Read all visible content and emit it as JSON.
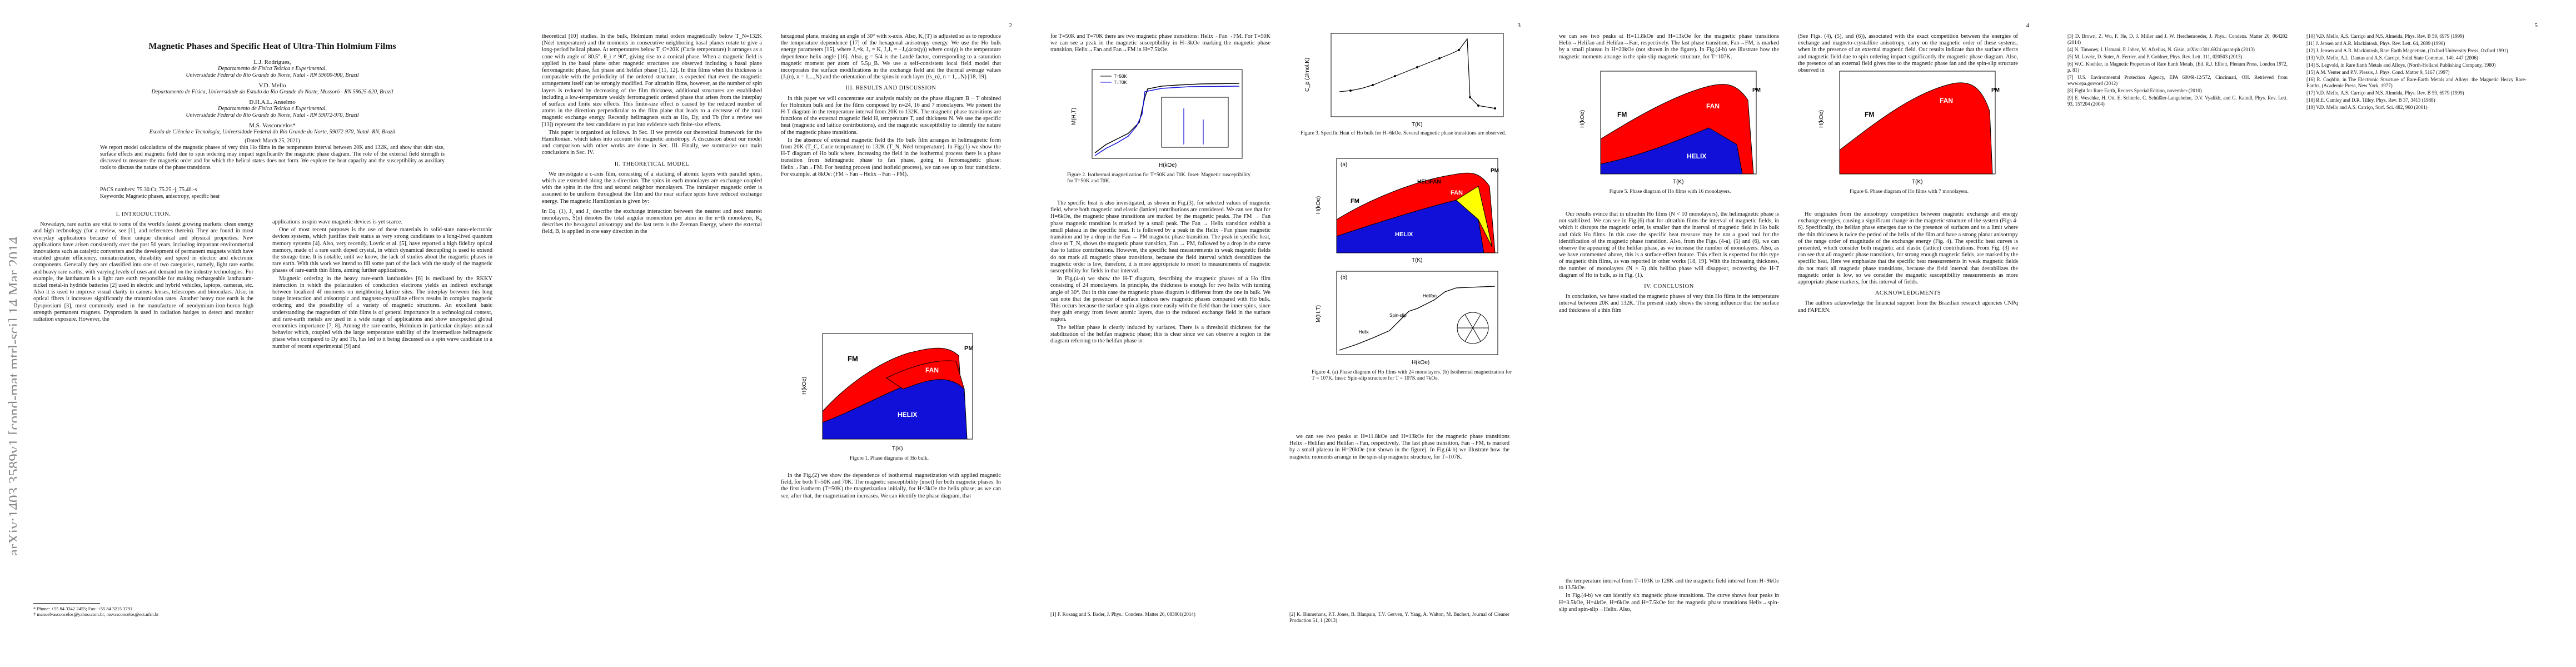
{
  "arxiv_stamp": "arXiv:1403.3589v1  [cond-mat.mtrl-sci]  14 Mar 2014",
  "page_numbers": [
    "2",
    "3",
    "4",
    "5"
  ],
  "paper": {
    "title": "Magnetic Phases and Specific Heat of Ultra-Thin Holmium Films",
    "authors": [
      {
        "name": "L.J. Rodrigues,",
        "affiliations": [
          "Departamento de Física Teórica e Experimental,",
          "Universidade Federal do Rio Grande do Norte, Natal - RN 59600-900, Brazil"
        ]
      },
      {
        "name": "V.D. Mello",
        "affiliations": [
          "Departamento de Física, Universidade do Estado do Rio Grande do Norte, Mossoró - RN 59625-620, Brazil"
        ]
      },
      {
        "name": "D.H.A.L. Anselmo",
        "affiliations": [
          "Departamento de Física Teórica e Experimental,",
          "Universidade Federal do Rio Grande do Norte, Natal - RN 59072-970, Brazil"
        ]
      },
      {
        "name": "M.S. Vasconcelos*",
        "affiliations": [
          "Escola de Ciência e Tecnologia, Universidade Federal do Rio Grande do Norte, 59072-970, Natal- RN, Brazil"
        ]
      }
    ],
    "date": "(Dated: March 25, 2021)",
    "abstract": "We report model calculations of the magnetic phases of very thin Ho films in the temperature interval between 20K and 132K, and show that skin size, surface effects and magnetic field due to spin ordering may impact significantly the magnetic phase diagram. The role of the external field strength is discussed to measure the magnetic order and for which the helical states does not form. We explore the heat capacity and the susceptibility as auxiliary tools to discuss the nature of the phase transitions.",
    "pacs": "PACS numbers: 75.30.Cr, 75.25.-j, 75.40.-s",
    "keywords": "Keywords: Magnetic phases, anisotropy, specific heat"
  },
  "sections": {
    "intro": "I.   INTRODUCTION.",
    "theory": "II.   THEORETICAL MODEL",
    "results": "III.   RESULTS AND DISCUSSION",
    "conclusion": "IV.   CONCLUSION",
    "ack": "ACKNOWLEDGMENTS"
  },
  "text": {
    "p1_col1": [
      "Nowadays, rare earths are vital to some of the world's fastest growing markets: clean energy and high technology (for a review, see [1], and references therein). They are found in most everyday applications because of their unique chemical and physical properties. New applications have arisen consistently over the past 50 years, including important environmental innovations such as catalytic converters and the development of permanent magnets which have enabled greater efficiency, miniaturization, durability and speed in electric and electronic components. Generally they are classified into one of two categories, namely, light rare earths and heavy rare earths, with varying levels of uses and demand on the industry technologies. For example, the lanthanum is a light rare earth responsible for making rechargeable lanthanum-nickel metal-in hydride batteries [2] used in electric and hybrid vehicles, laptops, cameras, etc. Also it is used to improve visual clarity in camera lenses, telescopes and binoculars. Also, in optical fibers it increases significantly the transmission rates. Another heavy rare earth is the Dysprosium [3], most commonly used in the manufacture of neodymium-iron-boron high strength permanent magnets. Dysprosium is used in radiation badges to detect and monitor radiation exposure. However, the"
    ],
    "p1_col2": [
      "applications in spin wave magnetic devices is yet scarce.",
      "One of most recent purposes is the use of these materials in solid-state nano-electronic devices systems, which justifies their status as very strong candidates to a long-lived quantum memory systems [4]. Also, very recently, Lovric et al. [5], have reported a high fidelity optical memory, made of a rare earth doped crystal, in which dynamical decoupling is used to extend the storage time. It is notable, until we know, the lack of studies about the magnetic phases in rare earth. With this work we intend to fill some part of the lack with the study of the magnetic phases of rare-earth thin films, aiming further applications.",
      "Magnetic ordering in the heavy rare-earth lanthanides [6] is mediated by the RKKY interaction in which the polarization of conduction electrons yields an indirect exchange between localized 4f moments on neighboring lattice sites. The interplay between this long range interaction and anisotropic and magneto-crystalline effects results in complex magnetic ordering and the possibility of a variety of magnetic structures. An excellent basic understanding the magnetism of thin films is of general importance in a technological context, and rare-earth metals are used in a wide range of applications and show unexpected global economics importance [7, 8]. Among the rare-earths, Holmium in particular displays unusual behavior which, coupled with the large temperature stability of the intermediate helimagnetic phase when compared to Dy and Tb, has led to it being discussed as a spin wave candidate in a number of recent experimental [9] and"
    ],
    "footnotes": [
      "* Phone: +55 84 3342 2455; Fax: +55 84 3215 3791",
      "† manuelvasconcelos@yahoo.com.br; msvasconcelos@ect.ufrn.br"
    ],
    "p2_col1": [
      "theoretical [10] studies. In the bulk, Holmium metal orders magnetically below T_N=132K (Néel temperature) and the moments in consecutive neighboring basal planes rotate to give a long-period helical phase. At temperatures below T_C=20K (Curie temperature) it arranges as a cone with angle of 80.5°, θ_i ≠ 90°, giving rise to a conical phase. When a magnetic field is applied in the basal plane other magnetic structures are observed including a basal plane ferromagnetic phase, fan phase and helifan phase [11, 12]. In thin films when the thickness is comparable with the periodicity of the ordered structure, is expected that even the magnetic arrangement itself can be strongly modified. For ultrathin films, however, as the number of spin layers is reduced by decreasing of the film thickness, additional structures are established including a low-temperature weakly ferromagnetic ordered phase that arises from the interplay of surface and finite size effects. This finite-size effect is caused by the reduced number of atoms in the direction perpendicular to the film plane that leads to a decrease of the total magnetic exchange energy. Recently helimagnets such as Ho, Dy, and Tb (for a review see [13]) represent the best candidates to put into evidence such finite-size effects.",
      "This paper is organized as follows. In Sec. II we provide our theoretical framework for the Hamiltonian, which takes into account the magnetic anisotropy. A discussion about our model and comparison with other works are done in Sec. III. Finally, we summarize our main conclusions in Sec. IV."
    ],
    "p2_col1_theory": [
      "We investigate a c-axis film, consisting of a stacking of atomic layers with parallel spins, which are extended along the z-direction. The spins in each monolayer are exchange coupled with the spins in the first and second neighbor monolayers. The intralayer magnetic order is assumed to be uniform throughout the film and the near surface spins have reduced exchange energy. The magnetic Hamiltonian is given by:"
    ],
    "equation": [
      "H = J₁(z − 1) Σ Ŝ(n)·Ŝ(n+1) +",
      "J₂(z − 1)² Σ Ŝ(n)·Ŝ(n+2) +",
      "Σ [K₆ cos(6φₙ) − gμ_B Ŝ(n)·B]",
      "(1)"
    ],
    "p2_col1_after": [
      "In Eq. (1), J₁ and J₂ describe the exchange interaction between the nearest and next nearest monolayers, Ŝ(n) denotes the total angular momentum per atom in the n−th monolayer, K₆ describes the hexagonal anisotropy and the last term is the Zeeman Energy, where the external field, B, is applied in one easy direction in the"
    ],
    "p2_col2": [
      "hexagonal plane, making an angle of 30° with x-axis. Also, K₆(T) is adjusted so as to reproduce the temperature dependence [17] of the hexagonal anisotropy energy. We use the Ho bulk energy parameters [15], where J₁=k, J₂ = K, J₁J₂ = −J₂(4cos(γ)) where cos(γ) is the temperature dependence helix angle [16]. Also, g = 5/4 is the Landé factor, corresponding to a saturation magnetic moment per atom of 5.5μ_B. We use a self-consistent local field model that incorporates the surface modifications in the exchange field and the thermal average values (J₁(n), n = 1,...,N) and the orientation of the spins in each layer (⟨s_n⟩, n = 1,...N) [18, 19].",
      "In this paper we will concentrate our analysis mainly on the phase diagram B − T obtained for Holmium bulk and for the films composed by n=24, 16 and 7 monolayers. We present the H-T diagram in the temperature interval from 20K to 132K. The magnetic phase transitions are functions of the external magnetic field H, temperature T, and thickness N. We use the specific heat (magnetic and lattice contributions), and the magnetic susceptibility to identify the nature of the magnetic phase transitions.",
      "In the absence of external magnetic field the Ho bulk film arranges in helimagnetic form from 20K (T_C, Curie temperature) to 132K (T_N, Néel temperature). In Fig.(1) we show the H-T diagram of Ho bulk where, increasing the field in the isothermal process there is a phase transition from helimagnetic phase to fan phase, going to ferromagnetic phase: Helix→Fan→FM. For heating process (and isofield process), we can see up to four transitions. For example, at 8kOe: (FM→Fan→Helix→Fan→PM)."
    ],
    "fig1_caption": "Figure 1. Phase diagrams of Ho bulk.",
    "fig1_below": "In the Fig.(2) we show the dependence of isothermal magnetization with applied magnetic field, for both T=50K and 70K. The magnetic susceptibility (inset) for both magnetic phases. In the first isotherm (T=50K) the magnetization initially, for H<3kOe the helix phase; as we can see, after that, the magnetization increases. We can identify the phase diagram, that",
    "p3_col1_top": "for T=50K and T=70K there are two magnetic phase transitions: Helix→Fan→FM. For T=50K we can see a peak in the magnetic susceptibility in H=3kOe marking the magnetic phase transition, Helix→Fan and Fan→FM in H=7.5kOe.",
    "fig2_caption": "Figure 2. Isothermal magnetization for T=50K and 70K. Inset: Magnetic susceptibility for T=50K and 70K.",
    "p3_col1": [
      "The specific heat is also investigated, as shown in Fig.(3), for selected values of magnetic field, where both magnetic and elastic (lattice) contributions are considered. We can see that for H=6kOe, the magnetic phase transitions are marked by the magnetic peaks. The FM → Fan phase magnetic transition is marked by a small peak. The Fan → Helix transition exhibit a small plateau in the specific heat. It is followed by a peak in the Helix→Fan phase magnetic transition and by a drop in the Fan → PM magnetic phase transition. The peak in specific heat, close to T_N, shows the magnetic phase transition, Fan → PM, followed by a drop in the curve due to lattice contributions. However, the specific heat measurements in weak magnetic fields do not mark all magnetic phase transitions, because the field interval which destabilizes the magnetic order is low, therefore, it is more appropriate to resort to measurements of magnetic susceptibility for fields in that interval.",
      "In Fig.(4-a) we show the H-T diagram, describing the magnetic phases of a Ho film consisting of 24 monolayers. In principle, the thickness is enough for two helix with turning angle of 30°. But in this case the magnetic phase diagram is different from the one in bulk. We can note that the presence of surface induces new magnetic phases compared with Ho bulk. This occurs because the surface spin aligns more easily with the field than the inner spins, since they gain energy from fewer atomic layers, due to the reduced exchange field in the surface region.",
      "The helifan phase is clearly induced by surfaces. There is a threshold thickness for the stabilization of the helifan magnetic phase; this is clear since we can observe a region in the diagram referring to the helifan phase in"
    ],
    "fig3_caption": "Figure 3. Specific Heat of Ho bulk for H=6kOe. Several magnetic phase transitions are observed.",
    "p3_col2": [
      "we can see two peaks at H=11.8kOe and H=13kOe for the magnetic phase transitions Helix→Helifan and Helifan→Fan, respectively. The last phase transition, Fan→FM, is marked by a small plateau in H=20kOe (not shown in the figure). In Fig.(4-b) we illustrate how the magnetic moments arrange in the spin-slip magnetic structure, for T=107K."
    ],
    "fig4_caption": "Figure 4. (a) Phase diagram of Ho films with 24 monolayers. (b) Isothermal magnetization for T = 107K. Inset: Spin-slip structure for T = 107K and 7kOe.",
    "p4_col1": [
      "Our results evince that in ultrathin Ho films (N < 10 monolayers), the helimagnetic phase is not stabilized. We can see in Fig.(6) that for ultrathin films the interval of magnetic fields, in which it disrupts the magnetic order, is smaller than the interval of magnetic field in Ho bulk and thick Ho films. In this case the specific heat measure may be not a good tool for the identification of the magnetic phase transition. Also, from the Figs. (4-a), (5) and (6), we can observe the appearing of the helifan phase, as we increase the number of monolayers. Also, as we have commented above, this is a surface-effect feature. This effect is expected for this type of magnetic thin films, as was reported in other works [18, 19]. With the increasing thickness, the number of monolayers (N > 5) this helifan phase will disappear, recovering the H-T diagram of Ho in bulk, as in Fig. (1).",
      "In conclusion, we have studied the magnetic phases of very thin Ho films in the temperature interval between 20K and 132K. The present study shows the strong influence that the surface and thickness of a thin film"
    ],
    "p4_col1_below": [
      "the temperature interval from T=103K to 128K and the magnetic field interval from H=9kOe to 13.5kOe.",
      "In Fig.(4-b) we can identify six magnetic phase transitions. The curve shows four peaks in H=3.5kOe, H=4kOe, H=6kOe and H=7.5kOe for the magnetic phase transitions Helix→spin-slip and spin-slip→Helix. Also,"
    ],
    "fig5_caption": "Figure 5. Phase diagram of Ho films with 16 monolayers.",
    "fig6_caption": "Figure 6. Phase diagram of Ho films with 7 monolayers.",
    "p4_col2": [
      "(See Figs. (4), (5), and (6)), associated with the exact competition between the energies of exchange and magneto-crystalline anisotropy, carry on the magnetic order of these systems, when in the presence of an external magnetic field. Our results indicate that the surface effects and magnetic field due to spin ordering impact significantly the magnetic phase diagram. Also, the presence of an external field gives rise to the magnetic phase fan and the spin-slip structure observed in",
      "Ho originates from the anisotropy competition between magnetic exchange and energy exchange energies, causing a significant change in the magnetic structure of the system (Figs 4-6). Specifically, the helifan phase emerges due to the presence of surfaces and to a limit where the thin thickness is twice the period of the helix of the film and have a strong planar anisotropy of the range order of magnitude of the exchange energy (Fig. 4). The specific heat curves is presented, which consider both magnetic and elastic (lattice) contributions. From Fig. (3) we can see that all magnetic phase transitions, for strong enough magnetic fields, are marked by the specific heat. Here we emphasize that the specific heat measurements in weak magnetic fields do not mark all magnetic phase transitions, because the field interval that destabilizes the magnetic order is low, so we consider the magnetic susceptibility measurements as more appropriate phase markers, for this interval of fields.",
      "The authors acknowledge the financial support from the Brazilian research agencies CNPq and FAPERN."
    ],
    "refs_p3": [
      "[1] F. Kosang and S. Bader, J. Phys.: Condens. Matter 26, 083801(2014)",
      "[2] K. Binnemans, P.T. Jones, B. Blanpain, T.V. Gerven, Y. Yang, A. Walton, M. Buchert, Journal of Cleaner Production 51, 1 (2013)"
    ],
    "refs_p4": [
      "[3] D. Brown, Z. Wu, F. He, D. J. Miller and J. W. Herchenroeder, J. Phys.: Condens. Matter 26, 064202 (2014)",
      "[4] N. Timoney, I. Usmani, P. Jobez, M. Afzelius, N. Gisin, arXiv:1301.6924 quant-ph (2013)",
      "[5] M. Lovric, D. Suter, A. Ferrier, and P. Goldner, Phys. Rev. Lett. 111, 020503 (2013)",
      "[6] W.C. Koehler, in Magnetic Properties of Rare Earth Metals, (Ed. R.J. Elliott, Plenum Press, London 1972, p. 81)",
      "[7] U.S. Environmental Protection Agency, EPA 600/R-12/572, Cincinnati, OH. Retrieved from www.epa.gov/ord (2012)",
      "[8] Fight for Rare Earth, Reuters Special Edition, november (2010)",
      "[9] E. Weschke, H. Ott, E. Schierle, C. Schüßler-Langeheine, D.V. Vyalikh, and G. Kaindl, Phys. Rev. Lett. 93, 157204 (2004)"
    ],
    "refs_p5": [
      "[10] V.D. Mello, A.S. Carriço and N.S. Almeida, Phys. Rev. B 59, 6979 (1999)",
      "[11] J. Jensen and A.R. Mackintosh, Phys. Rev. Lett. 64, 2699 (1990)",
      "[12] J. Jensen and A.R. Mackintosh, Rare Earth Magnetism, (Oxford University Press, Oxford 1991)",
      "[13] V.D. Mello, A.L. Dantas and A.S. Carriço, Solid State Commun. 140, 447 (2006)",
      "[14] S. Legvold, in Rare Earth Metals and Alloys, (North-Holland Publishing Company, 1980)",
      "[15] A.M. Venter and P.V. Plessis, J. Phys. Cond. Matter 9, 5167 (1997)",
      "[16] R. Coqblin, in The Electronic Structure of Rare-Earth Metals and Alloys: the Magnetic Heavy Rare-Earths, (Academic Press, New York, 1977)",
      "[17] V.D. Mello, A.S. Carriço and N.S. Almeida, Phys. Rev. B 59, 6979 (1999)",
      "[18] R.E. Camley and D.R. Tilley, Phys. Rev. B 37, 3413 (1988)",
      "[19] V.D. Mello and A.S. Carriço, Surf. Sci. 482, 960 (2001)"
    ]
  },
  "figures": {
    "phase_labels": {
      "fm": "FM",
      "fan": "FAN",
      "pm": "PM",
      "helix": "HELIX",
      "helifan": "HELIFAN"
    },
    "axis": {
      "t": "T(K)",
      "h": "H(kOe)",
      "m": "M(H,T)",
      "c": "C_p (J/mol.K)",
      "h_koe": "H(kOe)"
    },
    "fig2_legend": [
      "T=50K",
      "T=70K"
    ],
    "fig4b_legend": [
      "Helix",
      "Spin-slip",
      "Helifan"
    ],
    "fig4_panel_labels": [
      "(a)",
      "(b)"
    ],
    "colors": {
      "fm": "#ff0000",
      "fan": "#ff0000",
      "helix": "#1010d8",
      "helifan": "#ffff00",
      "pm": "#ffffff",
      "line": "#000000"
    }
  }
}
